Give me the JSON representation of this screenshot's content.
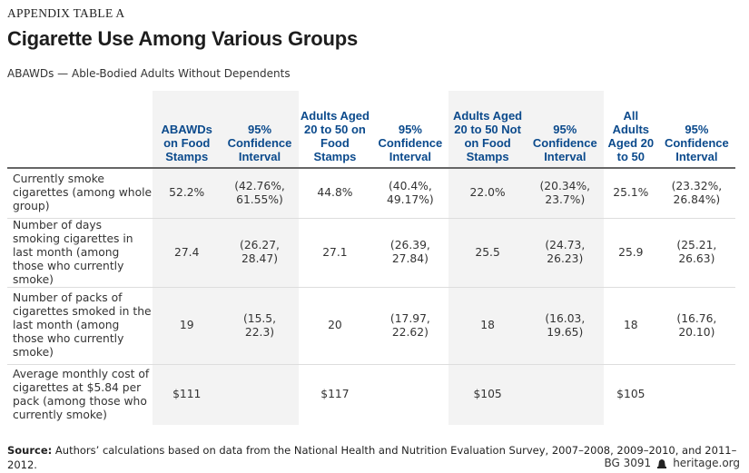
{
  "kicker": "APPENDIX TABLE A",
  "title": "Cigarette Use Among Various Groups",
  "subtitle": "ABAWDs — Able-Bodied Adults Without Dependents",
  "columns": [
    "ABAWDs on Food Stamps",
    "95% Confidence Interval",
    "Adults Aged 20 to 50 on Food Stamps",
    "95% Confidence Interval",
    "Adults Aged 20 to 50 Not on Food Stamps",
    "95% Confidence Interval",
    "All Adults Aged 20 to 50",
    "95% Confidence Interval"
  ],
  "rows": [
    {
      "label": "Currently smoke cigarettes (among whole group)",
      "cells": [
        "52.2%",
        "(42.76%,\n61.55%)",
        "44.8%",
        "(40.4%,\n49.17%)",
        "22.0%",
        "(20.34%,\n23.7%)",
        "25.1%",
        "(23.32%,\n26.84%)"
      ]
    },
    {
      "label": "Number of days smoking cigarettes in last month (among those who currently smoke)",
      "cells": [
        "27.4",
        "(26.27,\n28.47)",
        "27.1",
        "(26.39,\n27.84)",
        "25.5",
        "(24.73,\n26.23)",
        "25.9",
        "(25.21,\n26.63)"
      ]
    },
    {
      "label": "Number of packs of cigarettes smoked in the last month (among those who currently smoke)",
      "cells": [
        "19",
        "(15.5,\n22.3)",
        "20",
        "(17.97,\n22.62)",
        "18",
        "(16.03,\n19.65)",
        "18",
        "(16.76,\n20.10)"
      ]
    },
    {
      "label": "Average monthly cost of cigarettes at $5.84 per pack (among those who currently smoke)",
      "cells": [
        "$111",
        "",
        "$117",
        "",
        "$105",
        "",
        "$105",
        ""
      ]
    }
  ],
  "source": {
    "label": "Source:",
    "text": "Authors’ calculations based on data from the National Health and Nutrition Evaluation Survey, 2007–2008, 2009–2010, and 2011–2012."
  },
  "footer": {
    "code": "BG 3091",
    "site": "heritage.org",
    "logo_icon": "liberty-bell-icon"
  },
  "colors": {
    "header": "#0b4a8c",
    "shade": "#f3f3f3"
  }
}
